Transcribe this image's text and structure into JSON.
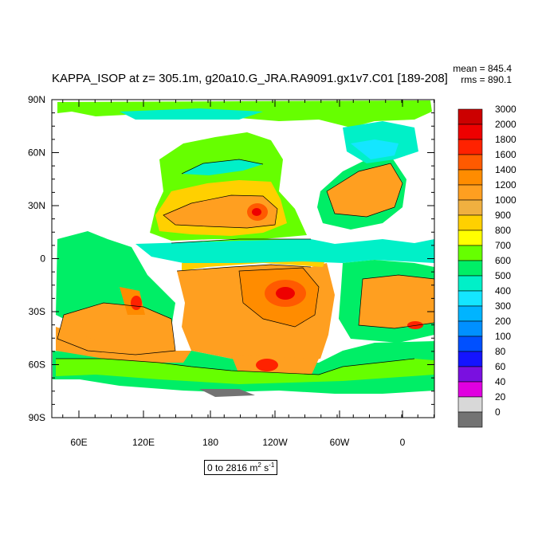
{
  "title": "KAPPA_ISOP at z= 305.1m, g20a10.G_JRA.RA9091.gx1v7.C01 [189-208]",
  "stats": {
    "mean": "mean = 845.4",
    "rms": "rms = 890.1"
  },
  "map": {
    "projection": "cylindrical-equidistant",
    "lat_labels": [
      "90N",
      "60N",
      "30N",
      "0",
      "30S",
      "60S",
      "90S"
    ],
    "lon_labels": [
      "60E",
      "120E",
      "180",
      "120W",
      "60W",
      "0"
    ],
    "land_color": "#ffffff"
  },
  "colorbar": {
    "levels": [
      "3000",
      "2000",
      "1800",
      "1600",
      "1400",
      "1200",
      "1000",
      "900",
      "800",
      "700",
      "600",
      "500",
      "400",
      "300",
      "200",
      "100",
      "80",
      "60",
      "40",
      "20",
      "0"
    ],
    "colors": [
      "#cc0000",
      "#ee0000",
      "#ff2200",
      "#ff5a00",
      "#ff8c00",
      "#ff9f20",
      "#f0b040",
      "#ffd000",
      "#ffff00",
      "#66ff00",
      "#00ee66",
      "#00f0c8",
      "#14e6ff",
      "#00b4ff",
      "#0090ff",
      "#0050ff",
      "#1414ff",
      "#7a10e0",
      "#e000e0",
      "#d8d8d8",
      "#737373"
    ]
  },
  "range": {
    "text": "0 to 2816 m",
    "exp1": "2",
    "mid": " s",
    "exp2": "-1"
  }
}
